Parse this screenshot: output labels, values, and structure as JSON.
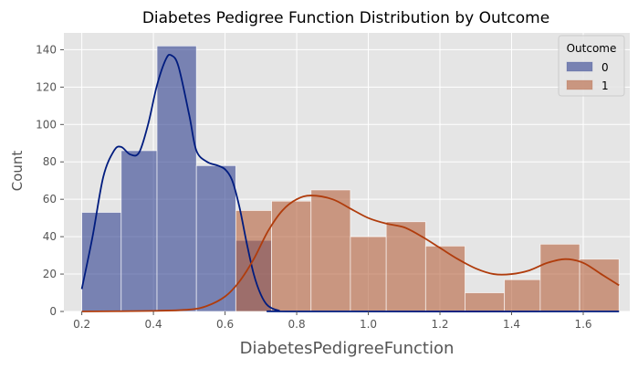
{
  "chart_data": {
    "type": "histogram",
    "title": "Diabetes Pedigree Function Distribution by Outcome",
    "xlabel": "DiabetesPedigreeFunction",
    "ylabel": "Count",
    "xlim": [
      0.15,
      1.73
    ],
    "ylim": [
      0,
      149
    ],
    "x_ticks": [
      0.2,
      0.4,
      0.6,
      0.8,
      1.0,
      1.2,
      1.4,
      1.6
    ],
    "x_tick_labels": [
      "0.2",
      "0.4",
      "0.6",
      "0.8",
      "1.0",
      "1.2",
      "1.4",
      "1.6"
    ],
    "y_ticks": [
      0,
      20,
      40,
      60,
      80,
      100,
      120,
      140
    ],
    "y_tick_labels": [
      "0",
      "20",
      "40",
      "60",
      "80",
      "100",
      "120",
      "140"
    ],
    "grid": true,
    "legend": {
      "title": "Outcome",
      "position": "top-right"
    },
    "series": [
      {
        "name": "0",
        "color": "#2e3f8f",
        "line_color": "#001c7f",
        "bins": [
          {
            "x0": 0.2,
            "x1": 0.31,
            "count": 53
          },
          {
            "x0": 0.31,
            "x1": 0.41,
            "count": 86
          },
          {
            "x0": 0.41,
            "x1": 0.52,
            "count": 142
          },
          {
            "x0": 0.52,
            "x1": 0.63,
            "count": 78
          },
          {
            "x0": 0.63,
            "x1": 0.73,
            "count": 38
          },
          {
            "x0": 0.73,
            "x1": 1.7,
            "count": 0
          }
        ],
        "kde": [
          [
            0.2,
            12
          ],
          [
            0.23,
            40
          ],
          [
            0.26,
            72
          ],
          [
            0.29,
            86
          ],
          [
            0.31,
            88
          ],
          [
            0.335,
            84
          ],
          [
            0.36,
            85
          ],
          [
            0.385,
            100
          ],
          [
            0.41,
            121
          ],
          [
            0.435,
            135
          ],
          [
            0.45,
            137
          ],
          [
            0.47,
            131
          ],
          [
            0.5,
            105
          ],
          [
            0.52,
            86
          ],
          [
            0.55,
            80
          ],
          [
            0.58,
            78
          ],
          [
            0.6,
            76
          ],
          [
            0.62,
            70
          ],
          [
            0.64,
            56
          ],
          [
            0.66,
            37
          ],
          [
            0.68,
            20
          ],
          [
            0.7,
            9
          ],
          [
            0.72,
            3
          ],
          [
            0.75,
            0.5
          ],
          [
            0.8,
            0
          ],
          [
            1.7,
            0
          ]
        ]
      },
      {
        "name": "1",
        "color": "#b5603c",
        "line_color": "#b03c0c",
        "bins": [
          {
            "x0": 0.2,
            "x1": 0.63,
            "count": 0
          },
          {
            "x0": 0.63,
            "x1": 0.73,
            "count": 54
          },
          {
            "x0": 0.73,
            "x1": 0.84,
            "count": 59
          },
          {
            "x0": 0.84,
            "x1": 0.95,
            "count": 65
          },
          {
            "x0": 0.95,
            "x1": 1.05,
            "count": 40
          },
          {
            "x0": 1.05,
            "x1": 1.16,
            "count": 48
          },
          {
            "x0": 1.16,
            "x1": 1.27,
            "count": 35
          },
          {
            "x0": 1.27,
            "x1": 1.38,
            "count": 10
          },
          {
            "x0": 1.38,
            "x1": 1.48,
            "count": 17
          },
          {
            "x0": 1.48,
            "x1": 1.59,
            "count": 36
          },
          {
            "x0": 1.59,
            "x1": 1.7,
            "count": 28
          }
        ],
        "kde": [
          [
            0.2,
            0
          ],
          [
            0.4,
            0.3
          ],
          [
            0.5,
            1
          ],
          [
            0.55,
            3
          ],
          [
            0.6,
            8
          ],
          [
            0.64,
            16
          ],
          [
            0.68,
            28
          ],
          [
            0.72,
            43
          ],
          [
            0.76,
            54
          ],
          [
            0.8,
            60
          ],
          [
            0.84,
            62
          ],
          [
            0.9,
            60
          ],
          [
            0.95,
            55
          ],
          [
            1.0,
            50
          ],
          [
            1.05,
            47
          ],
          [
            1.1,
            45
          ],
          [
            1.15,
            40
          ],
          [
            1.2,
            34
          ],
          [
            1.25,
            28
          ],
          [
            1.3,
            23
          ],
          [
            1.35,
            20
          ],
          [
            1.4,
            20
          ],
          [
            1.45,
            22
          ],
          [
            1.5,
            26
          ],
          [
            1.55,
            28
          ],
          [
            1.6,
            26
          ],
          [
            1.65,
            20
          ],
          [
            1.7,
            14
          ]
        ]
      }
    ]
  }
}
